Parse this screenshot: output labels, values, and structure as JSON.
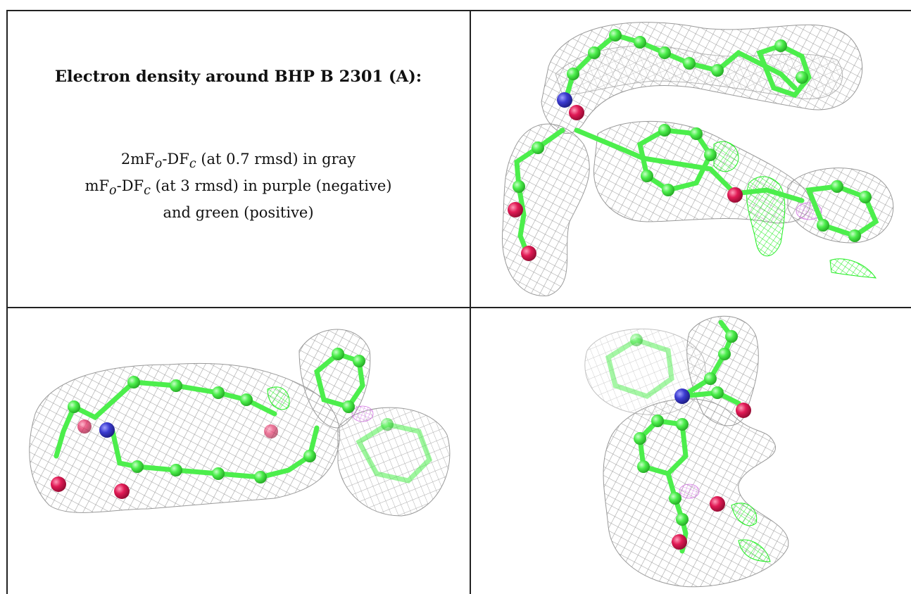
{
  "caption": {
    "title": "Electron density around BHP B 2301 (A):",
    "line1": {
      "lead": "2mF",
      "sub1": "o",
      "mid": "-DF",
      "sub2": "c",
      "tail": " (at 0.7 rmsd) in gray"
    },
    "line2": {
      "lead": "mF",
      "sub1": "o",
      "mid": "-DF",
      "sub2": "c",
      "tail": " (at 3 rmsd) in purple (negative)"
    },
    "line3": "and green (positive)"
  },
  "colors": {
    "carbon": "#4cee4c",
    "nitrogen": "#3c3cd0",
    "oxygen": "#e01a55",
    "mesh_gray": "#8a8a8a",
    "mesh_green": "#22ee22",
    "mesh_purple": "#d070e0"
  }
}
